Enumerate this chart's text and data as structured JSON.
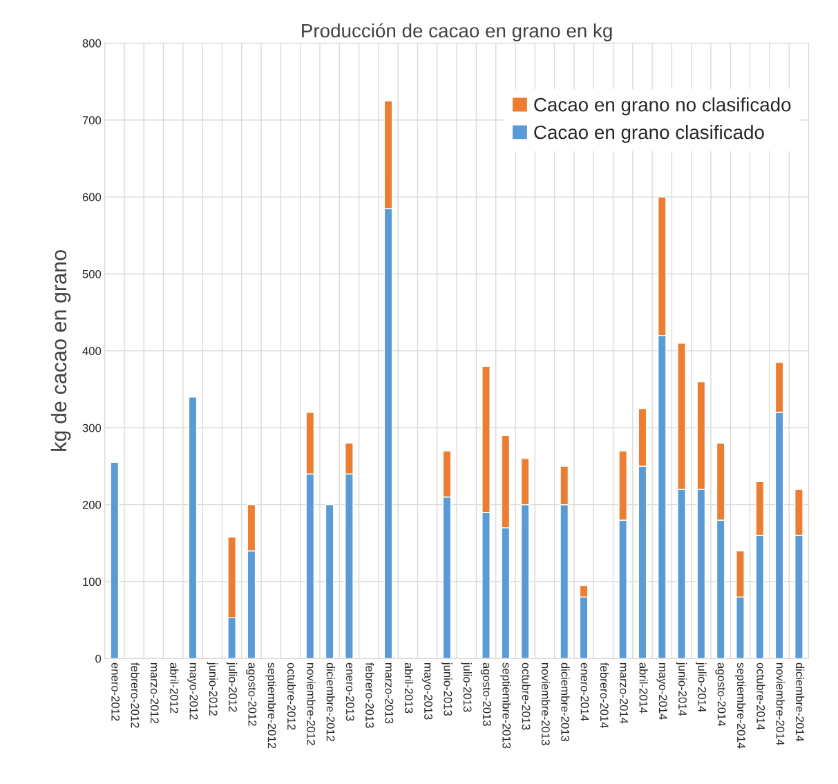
{
  "chart_data": {
    "type": "bar",
    "title": "Producción de cacao en grano en kg",
    "ylabel": "kg de cacao en grano",
    "categories": [
      "enero-2012",
      "febrero-2012",
      "marzo-2012",
      "abril-2012",
      "mayo-2012",
      "junio-2012",
      "julio-2012",
      "agosto-2012",
      "septiembre-2012",
      "octubre-2012",
      "noviembre-2012",
      "diciembre-2012",
      "enero-2013",
      "febrero-2013",
      "marzo-2013",
      "abril-2013",
      "mayo-2013",
      "junio-2013",
      "julio-2013",
      "agosto-2013",
      "septiembre-2013",
      "octubre-2013",
      "noviembre-2013",
      "diciembre-2013",
      "enero-2014",
      "febrero-2014",
      "marzo-2014",
      "abril-2014",
      "mayo-2014",
      "junio-2014",
      "julio-2014",
      "agosto-2014",
      "septiembre-2014",
      "octubre-2014",
      "noviembre-2014",
      "diciembre-2014"
    ],
    "series": [
      {
        "name": "Cacao en grano clasificado",
        "color": "#5b9bd5",
        "values": [
          255,
          null,
          null,
          null,
          340,
          null,
          53,
          140,
          null,
          null,
          240,
          200,
          240,
          null,
          585,
          null,
          null,
          210,
          null,
          190,
          170,
          200,
          null,
          200,
          80,
          null,
          180,
          250,
          420,
          220,
          220,
          180,
          80,
          160,
          320,
          160
        ]
      },
      {
        "name": "Cacao en grano no clasificado",
        "color": "#ed7d31",
        "values": [
          null,
          null,
          null,
          null,
          null,
          null,
          105,
          60,
          null,
          null,
          80,
          null,
          40,
          null,
          140,
          null,
          null,
          60,
          null,
          190,
          120,
          60,
          null,
          50,
          15,
          null,
          90,
          75,
          180,
          190,
          140,
          100,
          60,
          70,
          65,
          60
        ]
      }
    ],
    "stacked": true,
    "ylim": [
      0,
      800
    ],
    "yticks": [
      0,
      100,
      200,
      300,
      400,
      500,
      600,
      700,
      800
    ],
    "grid": true,
    "legend": "top right"
  }
}
